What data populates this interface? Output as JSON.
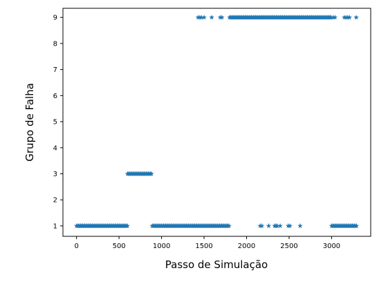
{
  "chart_data": {
    "type": "scatter",
    "title": "",
    "xlabel": "Passo de Simulação",
    "ylabel": "Grupo de Falha",
    "xlim": [
      -160,
      3460
    ],
    "ylim": [
      0.6,
      9.35
    ],
    "xticks": [
      0,
      500,
      1000,
      1500,
      2000,
      2500,
      3000
    ],
    "yticks": [
      1,
      2,
      3,
      4,
      5,
      6,
      7,
      8,
      9
    ],
    "grid": false,
    "legend": "none",
    "marker": "star",
    "color": "#1f77b4",
    "series": [
      {
        "segments": [
          {
            "y": 1,
            "x_start": 0,
            "x_end": 600
          },
          {
            "y": 3,
            "x_start": 600,
            "x_end": 890
          },
          {
            "y": 1,
            "x_start": 890,
            "x_end": 1800
          },
          {
            "y": 9,
            "x_start": 1800,
            "x_end": 3000
          },
          {
            "y": 1,
            "x_start": 3000,
            "x_end": 3300
          }
        ],
        "points": [
          {
            "x": 1430,
            "y": 9
          },
          {
            "x": 1450,
            "y": 9
          },
          {
            "x": 1470,
            "y": 9
          },
          {
            "x": 1500,
            "y": 9
          },
          {
            "x": 1590,
            "y": 9
          },
          {
            "x": 1690,
            "y": 9
          },
          {
            "x": 1710,
            "y": 9
          },
          {
            "x": 2160,
            "y": 1
          },
          {
            "x": 2180,
            "y": 1
          },
          {
            "x": 2260,
            "y": 1
          },
          {
            "x": 2330,
            "y": 1
          },
          {
            "x": 2345,
            "y": 1
          },
          {
            "x": 2360,
            "y": 1
          },
          {
            "x": 2395,
            "y": 1
          },
          {
            "x": 2490,
            "y": 1
          },
          {
            "x": 2510,
            "y": 1
          },
          {
            "x": 2630,
            "y": 1
          },
          {
            "x": 3020,
            "y": 9
          },
          {
            "x": 3040,
            "y": 9
          },
          {
            "x": 3150,
            "y": 9
          },
          {
            "x": 3170,
            "y": 9
          },
          {
            "x": 3190,
            "y": 9
          },
          {
            "x": 3210,
            "y": 9
          },
          {
            "x": 3290,
            "y": 9
          }
        ]
      }
    ]
  }
}
